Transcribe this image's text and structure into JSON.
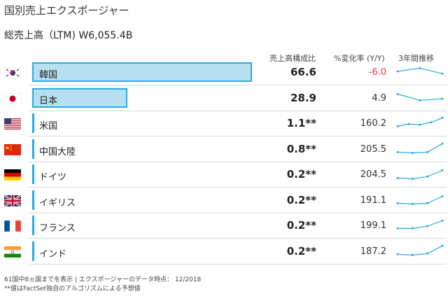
{
  "title": "国別売上エクスポージャー",
  "total_sales": "総売上高（LTM) W6,055.4B",
  "headers": {
    "share": "売上高構成比",
    "change": "%変化率 (Y/Y)",
    "trend": "3年間推移"
  },
  "colors": {
    "bar_border": "#29abe2",
    "bar_fill": "#b8dff0",
    "negative": "#e53935",
    "sparkline": "#29abe2"
  },
  "chart_data": {
    "type": "bar",
    "categories": [
      "韓国",
      "日本",
      "米国",
      "中国大陸",
      "ドイツ",
      "イギリス",
      "フランス",
      "インド"
    ],
    "share_labels": [
      "66.6",
      "28.9",
      "1.1**",
      "0.8**",
      "0.2**",
      "0.2**",
      "0.2**",
      "0.2**"
    ],
    "share_values": [
      66.6,
      28.9,
      1.1,
      0.8,
      0.2,
      0.2,
      0.2,
      0.2
    ],
    "change_labels": [
      "-6.0",
      "4.9",
      "160.2",
      "205.5",
      "204.5",
      "191.1",
      "199.1",
      "187.2"
    ],
    "change_values": [
      -6.0,
      4.9,
      160.2,
      205.5,
      204.5,
      191.1,
      199.1,
      187.2
    ],
    "flag_icons": [
      "korea-flag-icon",
      "japan-flag-icon",
      "usa-flag-icon",
      "china-flag-icon",
      "germany-flag-icon",
      "uk-flag-icon",
      "france-flag-icon",
      "india-flag-icon"
    ],
    "trends": [
      [
        0.55,
        0.75,
        0.4
      ],
      [
        0.75,
        0.35,
        0.45
      ],
      [
        0.3,
        0.45,
        0.4,
        0.55,
        0.85
      ],
      [
        0.3,
        0.25,
        0.3,
        0.85
      ],
      [
        0.25,
        0.2,
        0.35,
        0.75
      ],
      [
        0.3,
        0.25,
        0.3,
        0.75
      ],
      [
        0.3,
        0.3,
        0.45,
        0.8
      ],
      [
        0.3,
        0.25,
        0.35,
        0.85
      ]
    ],
    "xlim": [
      0,
      100
    ]
  },
  "footnotes": {
    "line1": "61国中8ヵ国までを表示 | エクスポージャーのデータ時点： 12/2018",
    "line2": "**値はFactSet独自のアルゴリズムによる予想値"
  }
}
